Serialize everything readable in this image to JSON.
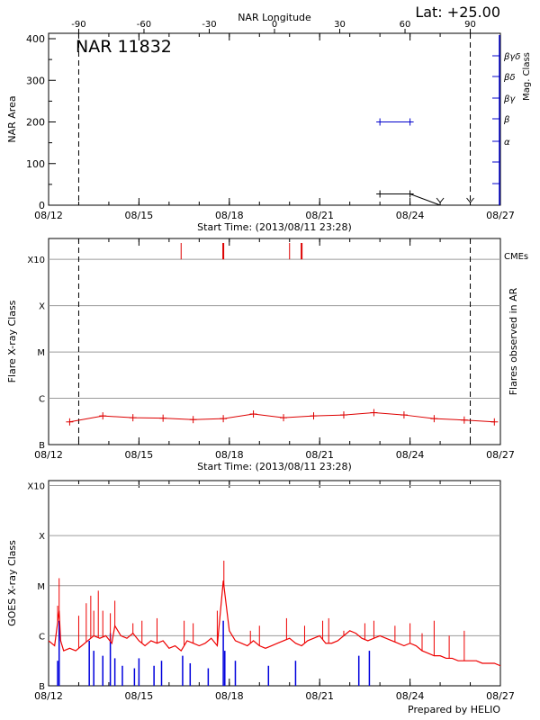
{
  "header": {
    "lat_label": "Lat: +25.00"
  },
  "footer": {
    "credit": "Prepared by HELIO"
  },
  "chart_data": [
    {
      "id": "nar_area",
      "type": "line",
      "title": "NAR 11832",
      "top_axis_label": "NAR Longitude",
      "top_ticks": [
        "-90",
        "-60",
        "-30",
        "0",
        "30",
        "60",
        "90"
      ],
      "top_tick_values": [
        -90,
        -60,
        -30,
        0,
        30,
        60,
        90
      ],
      "xlabel": "Start Time: (2013/08/11 23:28)",
      "xlim": [
        0,
        15
      ],
      "x_ticks": [
        "08/12",
        "08/15",
        "08/18",
        "08/21",
        "08/24",
        "08/27"
      ],
      "x_tick_values": [
        0,
        3,
        6,
        9,
        12,
        15
      ],
      "ylabel": "NAR Area",
      "ylim": [
        0,
        400
      ],
      "y_ticks": [
        0,
        100,
        200,
        300,
        400
      ],
      "y2label": "Mag. Class",
      "mag_classes": [
        "α",
        "β",
        "βγ",
        "βδ",
        "βγδ"
      ],
      "vlines": [
        1.0,
        14.0
      ],
      "series": [
        {
          "values_x": [
            11.0,
            12.0,
            13.0
          ],
          "values_y": [
            27,
            27,
            0
          ],
          "color": "#000000"
        },
        {
          "values_x": [
            11.0,
            12.0
          ],
          "values_y": [
            200,
            200
          ],
          "color": "#0000cc"
        }
      ],
      "arrow_markers_x": [
        13.0,
        14.0
      ],
      "grid": false
    },
    {
      "id": "flare_class",
      "type": "line",
      "xlabel": "Start Time: (2013/08/11 23:28)",
      "xlim": [
        0,
        15
      ],
      "x_ticks": [
        "08/12",
        "08/15",
        "08/18",
        "08/21",
        "08/24",
        "08/27"
      ],
      "x_tick_values": [
        0,
        3,
        6,
        9,
        12,
        15
      ],
      "ylabel": "Flare X-ray Class",
      "y2label": "Flares observed in AR",
      "y_ticks": [
        "B",
        "C",
        "M",
        "X",
        "X10"
      ],
      "y_tick_values": [
        0,
        1,
        2,
        3,
        4
      ],
      "ylim": [
        0,
        4.45
      ],
      "cme_label": "CMEs",
      "cme_x": [
        4.4,
        5.8,
        8.0,
        8.4
      ],
      "vlines": [
        1.0,
        14.0
      ],
      "grid": true,
      "color": "#dd0000",
      "x": [
        0.7,
        1.8,
        2.8,
        3.8,
        4.8,
        5.8,
        6.8,
        7.8,
        8.8,
        9.8,
        10.8,
        11.8,
        12.8,
        13.8,
        14.8
      ],
      "y": [
        0.49,
        0.62,
        0.58,
        0.57,
        0.54,
        0.56,
        0.66,
        0.58,
        0.62,
        0.64,
        0.69,
        0.64,
        0.56,
        0.53,
        0.49
      ]
    },
    {
      "id": "goes_class",
      "type": "line",
      "xlim": [
        0,
        15
      ],
      "x_ticks": [
        "08/12",
        "08/15",
        "08/18",
        "08/21",
        "08/24",
        "08/27"
      ],
      "x_tick_values": [
        0,
        3,
        6,
        9,
        12,
        15
      ],
      "ylabel": "GOES X-ray Class",
      "y_ticks": [
        "B",
        "C",
        "M",
        "X",
        "X10"
      ],
      "y_tick_values": [
        0,
        1,
        2,
        3,
        4
      ],
      "ylim": [
        0,
        4.1
      ],
      "grid": true,
      "series": [
        {
          "name": "",
          "color": "#ee0000",
          "x": [
            0.0,
            0.2,
            0.35,
            0.4,
            0.5,
            0.7,
            0.9,
            1.1,
            1.3,
            1.5,
            1.7,
            1.9,
            2.1,
            2.2,
            2.4,
            2.6,
            2.8,
            3.0,
            3.2,
            3.4,
            3.6,
            3.8,
            4.0,
            4.2,
            4.4,
            4.6,
            4.8,
            5.0,
            5.2,
            5.4,
            5.6,
            5.8,
            5.9,
            6.0,
            6.2,
            6.4,
            6.6,
            6.8,
            7.0,
            7.2,
            7.4,
            7.6,
            7.8,
            8.0,
            8.2,
            8.4,
            8.6,
            8.8,
            9.0,
            9.2,
            9.4,
            9.6,
            9.8,
            10.0,
            10.2,
            10.4,
            10.6,
            10.8,
            11.0,
            11.2,
            11.4,
            11.6,
            11.8,
            12.0,
            12.2,
            12.4,
            12.6,
            12.8,
            13.0,
            13.2,
            13.4,
            13.6,
            13.8,
            14.0,
            14.2,
            14.4,
            14.6,
            14.8,
            15.0
          ],
          "y": [
            0.9,
            0.8,
            1.5,
            0.9,
            0.7,
            0.75,
            0.7,
            0.8,
            0.9,
            1.0,
            0.95,
            1.0,
            0.85,
            1.2,
            1.0,
            0.95,
            1.05,
            0.9,
            0.8,
            0.9,
            0.85,
            0.9,
            0.75,
            0.8,
            0.7,
            0.9,
            0.85,
            0.8,
            0.85,
            0.95,
            0.8,
            2.1,
            1.6,
            1.1,
            0.9,
            0.85,
            0.8,
            0.9,
            0.8,
            0.75,
            0.8,
            0.85,
            0.9,
            0.95,
            0.85,
            0.8,
            0.9,
            0.95,
            1.0,
            0.85,
            0.85,
            0.9,
            1.0,
            1.1,
            1.05,
            0.95,
            0.9,
            0.95,
            1.0,
            0.95,
            0.9,
            0.85,
            0.8,
            0.85,
            0.8,
            0.7,
            0.65,
            0.6,
            0.6,
            0.55,
            0.55,
            0.5,
            0.5,
            0.5,
            0.5,
            0.45,
            0.45,
            0.45,
            0.4
          ],
          "spikes_x": [
            0.3,
            0.35,
            1.0,
            1.25,
            1.4,
            1.5,
            1.65,
            1.8,
            2.05,
            2.2,
            2.8,
            3.1,
            3.6,
            4.5,
            4.8,
            5.6,
            5.82,
            6.7,
            7.0,
            7.9,
            8.5,
            9.1,
            9.3,
            9.8,
            10.5,
            10.8,
            11.5,
            12.0,
            12.4,
            12.8,
            13.3,
            13.8
          ],
          "spikes_y": [
            1.6,
            2.15,
            1.4,
            1.65,
            1.8,
            1.5,
            1.9,
            1.5,
            1.45,
            1.7,
            1.25,
            1.3,
            1.35,
            1.3,
            1.25,
            1.5,
            2.5,
            1.1,
            1.2,
            1.35,
            1.2,
            1.3,
            1.35,
            1.1,
            1.25,
            1.3,
            1.2,
            1.25,
            1.05,
            1.3,
            1.0,
            1.1
          ]
        },
        {
          "name": "",
          "color": "#0000dd",
          "spikes_x": [
            0.3,
            0.35,
            1.35,
            1.5,
            1.8,
            2.05,
            2.2,
            2.45,
            2.85,
            3.0,
            3.5,
            3.75,
            4.45,
            4.7,
            5.3,
            5.8,
            5.85,
            6.2,
            7.3,
            8.2,
            10.3,
            10.65
          ],
          "spikes_y": [
            0.5,
            1.3,
            0.9,
            0.7,
            0.6,
            1.05,
            0.55,
            0.4,
            0.35,
            0.55,
            0.4,
            0.5,
            0.6,
            0.45,
            0.35,
            1.3,
            0.7,
            0.5,
            0.4,
            0.5,
            0.6,
            0.7
          ],
          "baseline": 0.0
        }
      ]
    }
  ]
}
